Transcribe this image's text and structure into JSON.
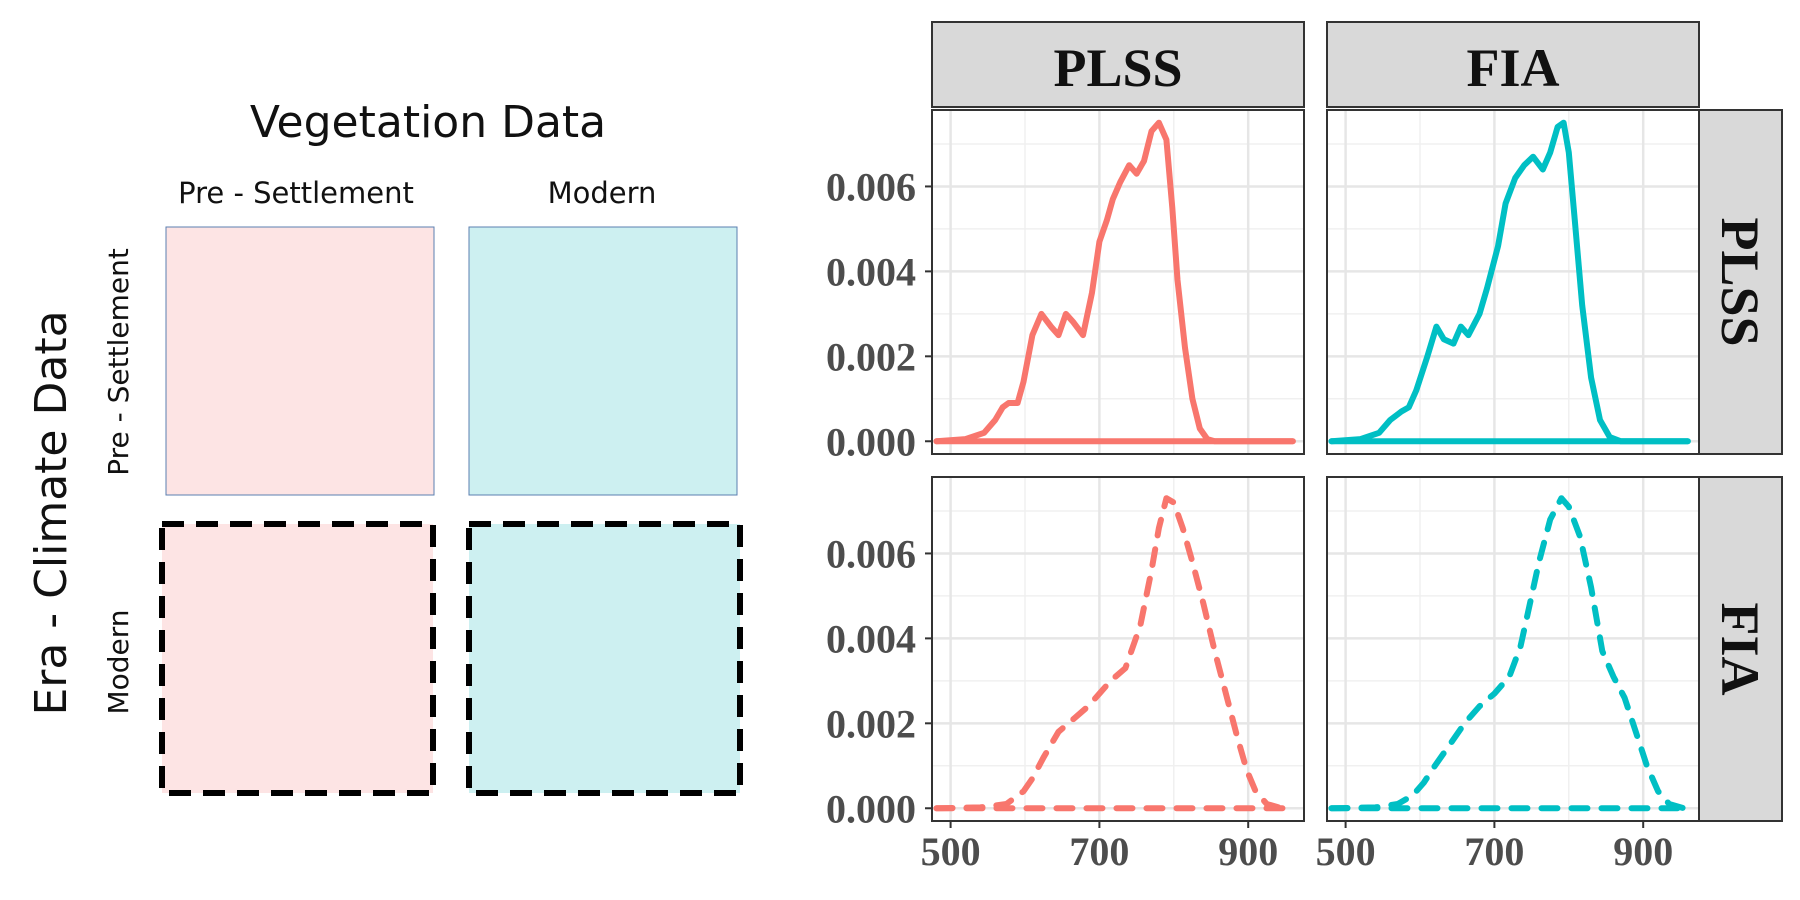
{
  "legend": {
    "title": "Vegetation Data",
    "column_labels": [
      "Pre - Settlement",
      "Modern"
    ],
    "row_axis_title": "Era - Climate Data",
    "row_labels": [
      "Pre - Settlement",
      "Modern"
    ],
    "colors": {
      "pink": "#fde4e4",
      "cyan": "#cdf0f1",
      "outline": "#5b7fb0",
      "dash": "#000000"
    }
  },
  "chart_data": {
    "type": "line",
    "facet_columns": [
      "PLSS",
      "FIA"
    ],
    "facet_rows": [
      "PLSS",
      "FIA"
    ],
    "xlim": [
      475,
      975
    ],
    "ylim": [
      -0.0003,
      0.0078
    ],
    "xticks": [
      500,
      700,
      900
    ],
    "yticks": [
      0.0,
      0.002,
      0.004,
      0.006
    ],
    "xtick_labels": [
      "500",
      "700",
      "900"
    ],
    "ytick_labels": [
      "0.000",
      "0.002",
      "0.004",
      "0.006"
    ],
    "grid": true,
    "colors": {
      "PLSS": "#f8766d",
      "FIA": "#00bfc4"
    },
    "panels": [
      {
        "row": "PLSS",
        "col": "PLSS",
        "color": "#f8766d",
        "dashed": false,
        "x": [
          481,
          520,
          545,
          560,
          570,
          578,
          590,
          598,
          610,
          622,
          635,
          645,
          655,
          665,
          678,
          690,
          700,
          710,
          718,
          728,
          740,
          750,
          760,
          770,
          780,
          790,
          798,
          805,
          815,
          825,
          835,
          845,
          855,
          870,
          900,
          960
        ],
        "y": [
          0.0,
          5e-05,
          0.0002,
          0.0005,
          0.0008,
          0.0009,
          0.0009,
          0.0014,
          0.0025,
          0.003,
          0.0027,
          0.0025,
          0.003,
          0.0028,
          0.0025,
          0.0035,
          0.0047,
          0.0052,
          0.0057,
          0.0061,
          0.0065,
          0.0063,
          0.0066,
          0.0073,
          0.0075,
          0.0071,
          0.0055,
          0.0038,
          0.0022,
          0.001,
          0.0003,
          5e-05,
          0.0,
          0.0,
          0.0,
          0.0
        ]
      },
      {
        "row": "PLSS",
        "col": "FIA",
        "color": "#00bfc4",
        "dashed": false,
        "x": [
          481,
          520,
          545,
          560,
          575,
          585,
          595,
          610,
          622,
          632,
          645,
          655,
          665,
          680,
          690,
          705,
          715,
          728,
          740,
          752,
          765,
          775,
          785,
          793,
          800,
          808,
          818,
          830,
          842,
          855,
          870,
          900,
          960
        ],
        "y": [
          0.0,
          5e-05,
          0.0002,
          0.0005,
          0.0007,
          0.0008,
          0.0012,
          0.002,
          0.0027,
          0.0024,
          0.0023,
          0.0027,
          0.0025,
          0.003,
          0.0036,
          0.0046,
          0.0056,
          0.0062,
          0.0065,
          0.0067,
          0.0064,
          0.0068,
          0.0074,
          0.0075,
          0.0068,
          0.0052,
          0.0032,
          0.0015,
          0.0005,
          0.0001,
          0.0,
          0.0,
          0.0
        ]
      },
      {
        "row": "FIA",
        "col": "PLSS",
        "color": "#f8766d",
        "dashed": true,
        "x": [
          481,
          540,
          575,
          598,
          610,
          625,
          645,
          665,
          685,
          700,
          715,
          735,
          755,
          770,
          780,
          790,
          800,
          812,
          825,
          840,
          855,
          870,
          885,
          898,
          910,
          925,
          945,
          955
        ],
        "y": [
          0.0,
          2e-05,
          0.0001,
          0.0004,
          0.0007,
          0.0012,
          0.0018,
          0.0021,
          0.0024,
          0.0027,
          0.003,
          0.0033,
          0.0043,
          0.0056,
          0.0066,
          0.0073,
          0.0072,
          0.0066,
          0.0058,
          0.0048,
          0.0037,
          0.0027,
          0.0017,
          0.0009,
          0.0004,
          0.0001,
          0.0,
          0.0
        ]
      },
      {
        "row": "FIA",
        "col": "FIA",
        "color": "#00bfc4",
        "dashed": true,
        "x": [
          481,
          540,
          570,
          590,
          605,
          620,
          640,
          660,
          680,
          700,
          720,
          735,
          745,
          760,
          775,
          790,
          800,
          815,
          830,
          845,
          860,
          875,
          890,
          905,
          920,
          935,
          955
        ],
        "y": [
          0.0,
          2e-05,
          0.0001,
          0.0003,
          0.0006,
          0.001,
          0.0015,
          0.002,
          0.0024,
          0.0027,
          0.0031,
          0.0038,
          0.0046,
          0.0058,
          0.0068,
          0.0073,
          0.0071,
          0.0064,
          0.0052,
          0.0037,
          0.0031,
          0.0026,
          0.0018,
          0.001,
          0.0004,
          0.0001,
          0.0
        ]
      }
    ]
  }
}
